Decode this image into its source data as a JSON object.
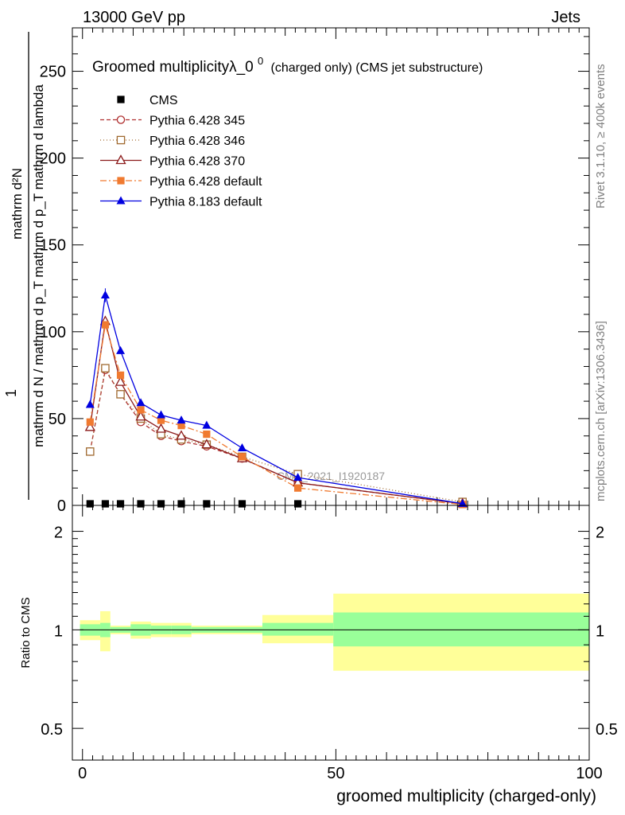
{
  "header": {
    "left": "13000 GeV pp",
    "right": "Jets"
  },
  "side_labels": {
    "top": "Rivet 3.1.10, ≥ 400k events",
    "bottom": "mcplots.cern.ch [arXiv:1306.3436]"
  },
  "chart_data": [
    {
      "type": "line",
      "title": "Groomed multiplicityλ_0",
      "title_sup": "0",
      "title_suffix": "(charged only) (CMS jet substructure)",
      "ylabel_numerator": "mathrm d²N",
      "ylabel_denominator": "mathrm d N / mathrm d p_T mathrm d p_T mathrm d lambda",
      "ylabel_prefix": "1",
      "watermark": "CMS_2021_I1920187",
      "xlim": [
        -2,
        100
      ],
      "ylim": [
        0,
        275
      ],
      "y_ticks": [
        0,
        50,
        100,
        150,
        200,
        250
      ],
      "x": [
        1.5,
        4.5,
        7.5,
        11.5,
        15.5,
        19.5,
        24.5,
        31.5,
        42.5,
        75
      ],
      "series": [
        {
          "name": "CMS",
          "color": "#000000",
          "marker": "square-filled",
          "dash": "none",
          "values": [
            0.4,
            0.4,
            0.4,
            0.4,
            0.4,
            0.4,
            0.4,
            0.4,
            0.4,
            0.4
          ]
        },
        {
          "name": "Pythia 6.428 345",
          "color": "#b03030",
          "marker": "circle-open",
          "dash": "5,3",
          "values": [
            31,
            78,
            64,
            48,
            40,
            37,
            34,
            27,
            13,
            1
          ]
        },
        {
          "name": "Pythia 6.428 346",
          "color": "#a06a30",
          "marker": "square-open",
          "dash": "1,3",
          "values": [
            31,
            79,
            64,
            50,
            41,
            38,
            35,
            28,
            18,
            2
          ]
        },
        {
          "name": "Pythia 6.428 370",
          "color": "#8b1a1a",
          "marker": "triangle-open",
          "dash": "none",
          "values": [
            45,
            106,
            71,
            51,
            44,
            40,
            35,
            27,
            13,
            1
          ]
        },
        {
          "name": "Pythia 6.428 default",
          "color": "#f07a30",
          "marker": "square-filled",
          "dash": "8,3,2,3",
          "values": [
            48,
            104,
            75,
            55,
            49,
            46,
            41,
            28,
            10,
            0.5
          ]
        },
        {
          "name": "Pythia 8.183 default",
          "color": "#0000e0",
          "marker": "triangle-filled",
          "dash": "none",
          "values": [
            58,
            121,
            89,
            59,
            52,
            49,
            46,
            33,
            16,
            1
          ]
        }
      ]
    },
    {
      "type": "area",
      "ylabel": "Ratio to CMS",
      "xlabel": "groomed multiplicity (charged-only)",
      "xlim": [
        -2,
        100
      ],
      "ylim": [
        0.4,
        2.4
      ],
      "y_ticks": [
        0.5,
        1,
        2
      ],
      "x_ticks": [
        0,
        50,
        100
      ],
      "reference": 1,
      "bands": [
        {
          "x": [
            -0.5,
            3.5
          ],
          "inner": [
            0.96,
            1.04
          ],
          "outer": [
            0.93,
            1.07
          ]
        },
        {
          "x": [
            3.5,
            5.5
          ],
          "inner": [
            0.95,
            1.05
          ],
          "outer": [
            0.86,
            1.14
          ]
        },
        {
          "x": [
            5.5,
            9.5
          ],
          "inner": [
            0.98,
            1.02
          ],
          "outer": [
            0.97,
            1.03
          ]
        },
        {
          "x": [
            9.5,
            13.5
          ],
          "inner": [
            0.96,
            1.04
          ],
          "outer": [
            0.94,
            1.06
          ]
        },
        {
          "x": [
            13.5,
            17.5
          ],
          "inner": [
            0.97,
            1.03
          ],
          "outer": [
            0.95,
            1.05
          ]
        },
        {
          "x": [
            17.5,
            21.5
          ],
          "inner": [
            0.97,
            1.03
          ],
          "outer": [
            0.95,
            1.05
          ]
        },
        {
          "x": [
            21.5,
            27.5
          ],
          "inner": [
            0.98,
            1.02
          ],
          "outer": [
            0.97,
            1.03
          ]
        },
        {
          "x": [
            27.5,
            35.5
          ],
          "inner": [
            0.98,
            1.02
          ],
          "outer": [
            0.97,
            1.03
          ]
        },
        {
          "x": [
            35.5,
            49.5
          ],
          "inner": [
            0.96,
            1.05
          ],
          "outer": [
            0.91,
            1.11
          ]
        },
        {
          "x": [
            49.5,
            100
          ],
          "inner": [
            0.89,
            1.13
          ],
          "outer": [
            0.75,
            1.29
          ]
        }
      ],
      "band_colors": {
        "inner": "#99ff99",
        "outer": "#ffff99"
      }
    }
  ]
}
